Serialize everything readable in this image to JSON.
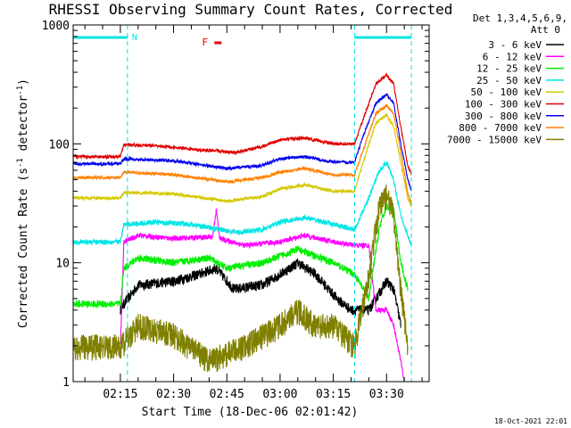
{
  "chart_data": {
    "type": "line",
    "title": "RHESSI Observing Summary Count Rates, Corrected",
    "xlabel": "Start Time (18-Dec-06 02:01:42)",
    "ylabel": "Corrected Count Rate (s⁻¹ detector⁻¹)",
    "ylabel_main": "Corrected Count Rate (s",
    "ylabel_sup1": "-1",
    "ylabel_mid": " detector",
    "ylabel_sup2": "-1",
    "ylabel_end": ")",
    "yscale": "log",
    "ylim": [
      1,
      1000
    ],
    "xlim": [
      "02:01:42",
      "03:42:00"
    ],
    "x_ticks": [
      "02:15",
      "02:30",
      "02:45",
      "03:00",
      "03:15",
      "03:30"
    ],
    "y_ticks": [
      "1",
      "10",
      "100",
      "1000"
    ],
    "legend": {
      "placement": "right",
      "header_line1": "Det 1,3,4,5,6,9,",
      "header_line2": "Att 0",
      "entries": [
        {
          "label": "3 - 6 keV",
          "color": "#000000"
        },
        {
          "label": "6 - 12 keV",
          "color": "#ff00ff"
        },
        {
          "label": "12 - 25 keV",
          "color": "#00ee00"
        },
        {
          "label": "25 - 50 keV",
          "color": "#00e5e5"
        },
        {
          "label": "50 - 100 keV",
          "color": "#d4c800"
        },
        {
          "label": "100 - 300 keV",
          "color": "#e00000"
        },
        {
          "label": "300 - 800 keV",
          "color": "#0000ee"
        },
        {
          "label": "800 - 7000 keV",
          "color": "#ff8000"
        },
        {
          "label": "7000 - 15000 keV",
          "color": "#808000"
        }
      ]
    },
    "annotations": {
      "night_label": "N",
      "flare_label": "F",
      "night_color": "#00e5e5",
      "flare_color": "#e00000",
      "night_intervals": [
        [
          "02:01:42",
          "02:17:00"
        ],
        [
          "03:21:00",
          "03:37:00"
        ]
      ],
      "flare_interval": [
        "02:41:30",
        "02:43:30"
      ],
      "vertical_markers": [
        "02:17:00",
        "03:21:00",
        "03:37:00"
      ]
    },
    "series": [
      {
        "name": "3 - 6 keV",
        "color": "#000000",
        "noise": 0.1,
        "points": [
          [
            "02:15:00",
            4
          ],
          [
            "02:16:00",
            4.5
          ],
          [
            "02:20:00",
            6.5
          ],
          [
            "02:30:00",
            7
          ],
          [
            "02:37:00",
            8
          ],
          [
            "02:42:00",
            9
          ],
          [
            "02:47:00",
            6
          ],
          [
            "02:55:00",
            6.5
          ],
          [
            "03:00:00",
            8
          ],
          [
            "03:05:00",
            10
          ],
          [
            "03:10:00",
            8
          ],
          [
            "03:16:00",
            5
          ],
          [
            "03:20:00",
            4
          ],
          [
            "03:25:00",
            4
          ],
          [
            "03:30:00",
            7
          ],
          [
            "03:32:00",
            6
          ],
          [
            "03:34:00",
            3
          ]
        ]
      },
      {
        "name": "6 - 12 keV",
        "color": "#ff00ff",
        "noise": 0.05,
        "points": [
          [
            "02:15:00",
            2
          ],
          [
            "02:16:00",
            15
          ],
          [
            "02:20:00",
            17
          ],
          [
            "02:30:00",
            16
          ],
          [
            "02:41:00",
            16.5
          ],
          [
            "02:42:00",
            28
          ],
          [
            "02:43:00",
            16
          ],
          [
            "02:50:00",
            14
          ],
          [
            "03:00:00",
            15
          ],
          [
            "03:07:00",
            17
          ],
          [
            "03:15:00",
            15
          ],
          [
            "03:21:00",
            14
          ],
          [
            "03:25:00",
            14
          ],
          [
            "03:27:00",
            4
          ],
          [
            "03:30:00",
            4
          ],
          [
            "03:32:00",
            3
          ],
          [
            "03:34:00",
            1.5
          ],
          [
            "03:35:00",
            1
          ]
        ]
      },
      {
        "name": "12 - 25 keV",
        "color": "#00ee00",
        "noise": 0.07,
        "points": [
          [
            "02:01:42",
            4.5
          ],
          [
            "02:15:00",
            4.5
          ],
          [
            "02:16:00",
            9
          ],
          [
            "02:20:00",
            11
          ],
          [
            "02:30:00",
            10
          ],
          [
            "02:40:00",
            11
          ],
          [
            "02:45:00",
            9
          ],
          [
            "02:55:00",
            10
          ],
          [
            "03:05:00",
            13
          ],
          [
            "03:15:00",
            10
          ],
          [
            "03:21:00",
            8
          ],
          [
            "03:25:00",
            5
          ],
          [
            "03:28:00",
            20
          ],
          [
            "03:30:00",
            30
          ],
          [
            "03:32:00",
            28
          ],
          [
            "03:34:00",
            10
          ],
          [
            "03:36:00",
            6
          ]
        ]
      },
      {
        "name": "25 - 50 keV",
        "color": "#00e5e5",
        "noise": 0.05,
        "points": [
          [
            "02:01:42",
            15
          ],
          [
            "02:15:00",
            15
          ],
          [
            "02:16:00",
            21
          ],
          [
            "02:25:00",
            22
          ],
          [
            "02:35:00",
            21
          ],
          [
            "02:48:00",
            18
          ],
          [
            "02:55:00",
            19
          ],
          [
            "03:00:00",
            22
          ],
          [
            "03:07:00",
            24
          ],
          [
            "03:15:00",
            21
          ],
          [
            "03:21:00",
            19
          ],
          [
            "03:25:00",
            35
          ],
          [
            "03:28:00",
            60
          ],
          [
            "03:30:00",
            70
          ],
          [
            "03:32:00",
            50
          ],
          [
            "03:34:00",
            25
          ],
          [
            "03:37:00",
            14
          ]
        ]
      },
      {
        "name": "50 - 100 keV",
        "color": "#d4c800",
        "noise": 0.03,
        "points": [
          [
            "02:01:42",
            35
          ],
          [
            "02:15:00",
            35
          ],
          [
            "02:16:00",
            39
          ],
          [
            "02:30:00",
            38
          ],
          [
            "02:45:00",
            33
          ],
          [
            "02:55:00",
            36
          ],
          [
            "03:00:00",
            42
          ],
          [
            "03:07:00",
            45
          ],
          [
            "03:15:00",
            40
          ],
          [
            "03:21:00",
            40
          ],
          [
            "03:24:00",
            80
          ],
          [
            "03:27:00",
            150
          ],
          [
            "03:30:00",
            175
          ],
          [
            "03:32:00",
            140
          ],
          [
            "03:34:00",
            70
          ],
          [
            "03:36:00",
            35
          ],
          [
            "03:37:00",
            30
          ]
        ]
      },
      {
        "name": "100 - 300 keV",
        "color": "#e00000",
        "noise": 0.03,
        "points": [
          [
            "02:01:42",
            78
          ],
          [
            "02:15:00",
            78
          ],
          [
            "02:16:00",
            98
          ],
          [
            "02:25:00",
            97
          ],
          [
            "02:35:00",
            90
          ],
          [
            "02:48:00",
            85
          ],
          [
            "02:55:00",
            95
          ],
          [
            "03:00:00",
            108
          ],
          [
            "03:07:00",
            112
          ],
          [
            "03:15:00",
            100
          ],
          [
            "03:21:00",
            100
          ],
          [
            "03:24:00",
            180
          ],
          [
            "03:27:00",
            320
          ],
          [
            "03:30:00",
            380
          ],
          [
            "03:32:00",
            320
          ],
          [
            "03:34:00",
            140
          ],
          [
            "03:36:00",
            65
          ],
          [
            "03:37:00",
            55
          ]
        ]
      },
      {
        "name": "300 - 800 keV",
        "color": "#0000ee",
        "noise": 0.03,
        "points": [
          [
            "02:01:42",
            68
          ],
          [
            "02:15:00",
            68
          ],
          [
            "02:16:00",
            75
          ],
          [
            "02:30:00",
            72
          ],
          [
            "02:45:00",
            62
          ],
          [
            "02:55:00",
            66
          ],
          [
            "03:00:00",
            75
          ],
          [
            "03:07:00",
            78
          ],
          [
            "03:15:00",
            70
          ],
          [
            "03:21:00",
            70
          ],
          [
            "03:24:00",
            130
          ],
          [
            "03:27:00",
            220
          ],
          [
            "03:30:00",
            260
          ],
          [
            "03:32:00",
            220
          ],
          [
            "03:34:00",
            100
          ],
          [
            "03:36:00",
            50
          ],
          [
            "03:37:00",
            40
          ]
        ]
      },
      {
        "name": "800 - 7000 keV",
        "color": "#ff8000",
        "noise": 0.03,
        "points": [
          [
            "02:01:42",
            52
          ],
          [
            "02:15:00",
            52
          ],
          [
            "02:16:00",
            58
          ],
          [
            "02:30:00",
            55
          ],
          [
            "02:45:00",
            48
          ],
          [
            "02:55:00",
            52
          ],
          [
            "03:00:00",
            58
          ],
          [
            "03:07:00",
            62
          ],
          [
            "03:15:00",
            55
          ],
          [
            "03:21:00",
            55
          ],
          [
            "03:24:00",
            100
          ],
          [
            "03:27:00",
            180
          ],
          [
            "03:30:00",
            210
          ],
          [
            "03:32:00",
            180
          ],
          [
            "03:34:00",
            85
          ],
          [
            "03:36:00",
            38
          ],
          [
            "03:37:00",
            32
          ]
        ]
      },
      {
        "name": "7000 - 15000 keV",
        "color": "#808000",
        "noise": 0.25,
        "points": [
          [
            "02:01:42",
            2
          ],
          [
            "02:15:00",
            2
          ],
          [
            "02:20:00",
            3
          ],
          [
            "02:30:00",
            2.5
          ],
          [
            "02:40:00",
            1.5
          ],
          [
            "02:50:00",
            2
          ],
          [
            "03:00:00",
            3
          ],
          [
            "03:05:00",
            4
          ],
          [
            "03:10:00",
            3
          ],
          [
            "03:15:00",
            3
          ],
          [
            "03:21:00",
            2
          ],
          [
            "03:25:00",
            8
          ],
          [
            "03:28:00",
            30
          ],
          [
            "03:30:00",
            37
          ],
          [
            "03:32:00",
            25
          ],
          [
            "03:34:00",
            6
          ],
          [
            "03:36:00",
            2
          ]
        ]
      }
    ]
  },
  "footer": {
    "timestamp": "18-Oct-2021 22:01"
  }
}
